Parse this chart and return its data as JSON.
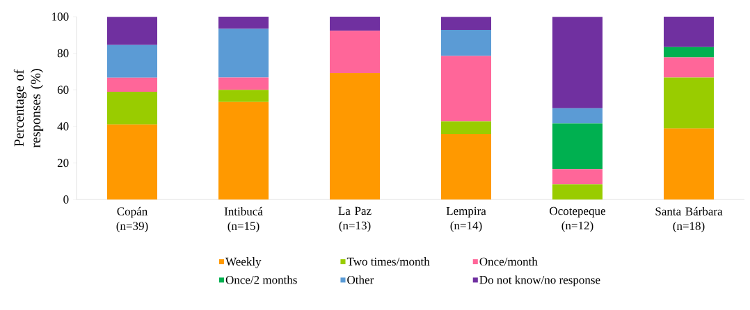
{
  "chart_data": {
    "type": "bar",
    "stacked": true,
    "ylabel": "Percentage of responses (%)",
    "categories": [
      "Copán\n(n=39)",
      "Intibucá\n(n=15)",
      "La Paz\n(n=13)",
      "Lempira\n(n=14)",
      "Ocotepeque\n(n=12)",
      "Santa Bárbara\n(n=18)"
    ],
    "series": [
      {
        "name": "Weekly",
        "color": "#ff9900",
        "values": [
          41.0,
          53.3,
          69.2,
          35.7,
          0,
          38.9
        ]
      },
      {
        "name": "Two times/month",
        "color": "#99cc00",
        "values": [
          17.9,
          6.7,
          0,
          7.1,
          8.3,
          27.8
        ]
      },
      {
        "name": "Once/month",
        "color": "#ff6699",
        "values": [
          7.7,
          6.7,
          23.1,
          35.7,
          8.3,
          11.1
        ]
      },
      {
        "name": "Once/2 months",
        "color": "#00b050",
        "values": [
          0,
          0,
          0,
          0,
          25.0,
          5.6
        ]
      },
      {
        "name": "Other",
        "color": "#5b9bd5",
        "values": [
          17.9,
          26.6,
          0,
          14.3,
          8.3,
          0
        ]
      },
      {
        "name": "Do not know/no response",
        "color": "#7030a0",
        "values": [
          15.4,
          6.7,
          7.7,
          7.1,
          50.0,
          16.6
        ]
      }
    ],
    "ylim": [
      0,
      100
    ],
    "yticks": [
      0,
      20,
      40,
      60,
      80,
      100
    ],
    "legend": "bottom",
    "grid": false
  }
}
